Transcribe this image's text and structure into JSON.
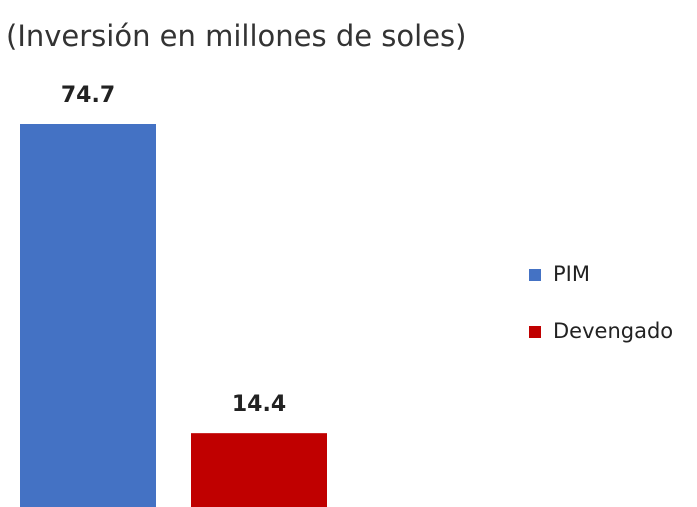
{
  "chart_data": {
    "type": "bar",
    "title": "(Inversión en millones de soles)",
    "series": [
      {
        "name": "PIM",
        "color": "#4472c4",
        "values": [
          74.7
        ]
      },
      {
        "name": "Devengado",
        "color": "#c00000",
        "values": [
          14.4
        ]
      }
    ]
  }
}
